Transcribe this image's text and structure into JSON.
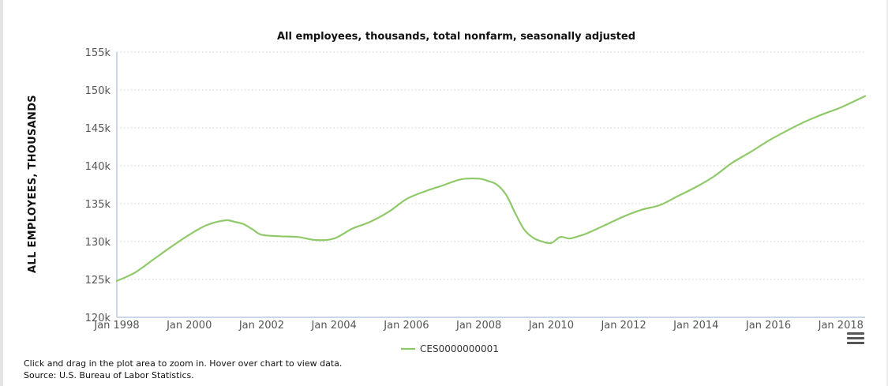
{
  "chart_data": {
    "type": "line",
    "title": "All employees, thousands, total nonfarm, seasonally adjusted",
    "xlabel": "",
    "ylabel": "ALL EMPLOYEES, THOUSANDS",
    "xlim": [
      1998.0,
      2018.67
    ],
    "ylim": [
      120000,
      155000
    ],
    "y_ticks": [
      120000,
      125000,
      130000,
      135000,
      140000,
      145000,
      150000,
      155000
    ],
    "y_tick_labels": [
      "120k",
      "125k",
      "130k",
      "135k",
      "140k",
      "145k",
      "150k",
      "155k"
    ],
    "x_ticks": [
      1998,
      2000,
      2002,
      2004,
      2006,
      2008,
      2010,
      2012,
      2014,
      2016,
      2018
    ],
    "x_tick_labels": [
      "Jan 1998",
      "Jan 2000",
      "Jan 2002",
      "Jan 2004",
      "Jan 2006",
      "Jan 2008",
      "Jan 2010",
      "Jan 2012",
      "Jan 2014",
      "Jan 2016",
      "Jan 2018"
    ],
    "grid": true,
    "legend_position": "bottom-center",
    "series": [
      {
        "name": "CES0000000001",
        "color": "#90c96a",
        "x": [
          1998.0,
          1998.5,
          1999.0,
          1999.5,
          2000.0,
          2000.5,
          2001.0,
          2001.25,
          2001.5,
          2001.75,
          2002.0,
          2002.5,
          2003.0,
          2003.5,
          2004.0,
          2004.5,
          2005.0,
          2005.5,
          2006.0,
          2006.5,
          2007.0,
          2007.5,
          2008.0,
          2008.25,
          2008.5,
          2008.75,
          2009.0,
          2009.25,
          2009.5,
          2009.75,
          2010.0,
          2010.25,
          2010.5,
          2010.75,
          2011.0,
          2011.5,
          2012.0,
          2012.5,
          2013.0,
          2013.5,
          2014.0,
          2014.5,
          2015.0,
          2015.5,
          2016.0,
          2016.5,
          2017.0,
          2017.5,
          2018.0,
          2018.67
        ],
        "values": [
          124800,
          125900,
          127600,
          129300,
          130900,
          132200,
          132800,
          132600,
          132300,
          131600,
          130900,
          130700,
          130600,
          130200,
          130400,
          131700,
          132600,
          133900,
          135600,
          136600,
          137400,
          138200,
          138300,
          138000,
          137500,
          136200,
          133800,
          131600,
          130500,
          130000,
          129800,
          130600,
          130400,
          130700,
          131100,
          132200,
          133300,
          134200,
          134800,
          136000,
          137200,
          138600,
          140400,
          141800,
          143300,
          144600,
          145800,
          146800,
          147700,
          149200
        ]
      }
    ]
  },
  "footer": {
    "note": "Click and drag in the plot area to zoom in. Hover over chart to view data.",
    "source": "Source: U.S. Bureau of Labor Statistics."
  }
}
